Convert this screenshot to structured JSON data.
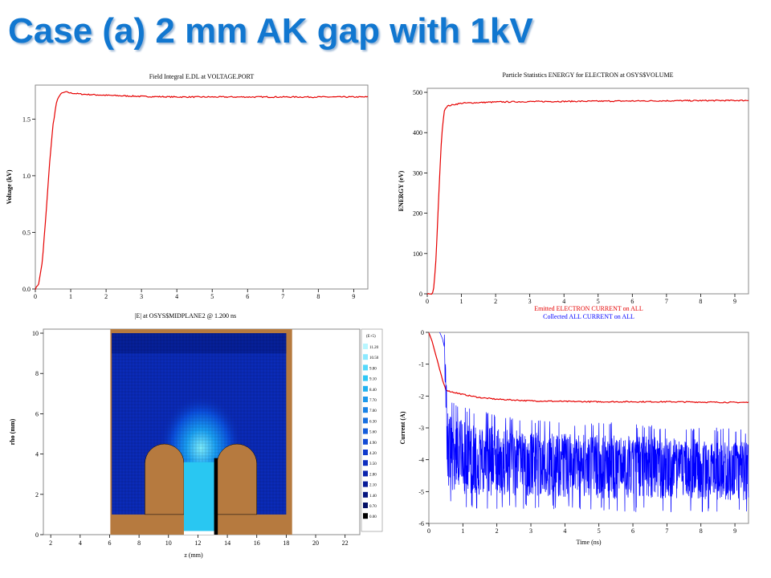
{
  "slide": {
    "title": "Case (a) 2 mm AK gap with 1kV"
  },
  "colors": {
    "title": "#1177d0",
    "red": "#e60000",
    "blue": "#0000ff",
    "copper": "#b67a3f"
  },
  "chart_data": [
    {
      "type": "line",
      "title": "Field Integral E.DL at VOLTAGE.PORT",
      "xlabel": "",
      "ylabel": "Voltage (kV)",
      "xlim": [
        0,
        9.4
      ],
      "ylim": [
        0,
        1.8
      ],
      "xticks": [
        "0",
        "1",
        "2",
        "3",
        "4",
        "5",
        "6",
        "7",
        "8",
        "9"
      ],
      "yticks": [
        "0.0",
        "0.5",
        "1.0",
        "1.5"
      ],
      "series": [
        {
          "color": "#e60000",
          "x": [
            0,
            0.1,
            0.2,
            0.3,
            0.4,
            0.5,
            0.6,
            0.7,
            0.85,
            1.0,
            1.3,
            2.0,
            3.0,
            4.0,
            5.0,
            6.0,
            7.0,
            8.0,
            9.0,
            9.4
          ],
          "y": [
            0,
            0.05,
            0.25,
            0.65,
            1.1,
            1.45,
            1.65,
            1.72,
            1.74,
            1.73,
            1.72,
            1.71,
            1.7,
            1.695,
            1.695,
            1.695,
            1.695,
            1.695,
            1.695,
            1.695
          ]
        }
      ]
    },
    {
      "type": "line",
      "title": "Particle Statistics ENERGY for ELECTRON at OSYS$VOLUME",
      "xlabel": "",
      "ylabel": "ENERGY (eV)",
      "xlim": [
        0,
        9.4
      ],
      "ylim": [
        0,
        510
      ],
      "xticks": [
        "0",
        "1",
        "2",
        "3",
        "4",
        "5",
        "6",
        "7",
        "8",
        "9"
      ],
      "yticks": [
        "0",
        "100",
        "200",
        "300",
        "400",
        "500"
      ],
      "series": [
        {
          "color": "#e60000",
          "x": [
            0,
            0.15,
            0.2,
            0.25,
            0.3,
            0.35,
            0.4,
            0.45,
            0.5,
            0.55,
            0.6,
            0.8,
            1.0,
            2.0,
            3.0,
            5.0,
            7.0,
            9.4
          ],
          "y": [
            0,
            0,
            20,
            80,
            170,
            270,
            360,
            420,
            455,
            463,
            466,
            470,
            473,
            476,
            477,
            478,
            479,
            480
          ]
        }
      ]
    },
    {
      "type": "heatmap",
      "title": "|E| at OSYS$MIDPLANE2 @ 1.200 ns",
      "xlabel": "z (mm)",
      "ylabel": "rho (mm)",
      "xlim": [
        1.5,
        23
      ],
      "ylim": [
        0,
        10.2
      ],
      "xticks": [
        "2",
        "4",
        "6",
        "8",
        "10",
        "12",
        "14",
        "16",
        "18",
        "20",
        "22"
      ],
      "yticks": [
        "0",
        "2",
        "4",
        "6",
        "8",
        "10"
      ],
      "legend_header": "(E+5)",
      "legend_values": [
        "11.20",
        "10.50",
        "9.80",
        "9.10",
        "8.40",
        "7.70",
        "7.00",
        "6.30",
        "5.60",
        "4.90",
        "4.20",
        "3.50",
        "2.80",
        "2.10",
        "1.40",
        "0.70",
        "0.00"
      ]
    },
    {
      "type": "line",
      "title": "",
      "legend": [
        "Emitted ELECTRON CURRENT on ALL",
        "Collected ALL CURRENT on ALL"
      ],
      "xlabel": "Time (ns)",
      "ylabel": "Current (A)",
      "xlim": [
        0,
        9.4
      ],
      "ylim": [
        -6,
        0
      ],
      "xticks": [
        "0",
        "1",
        "2",
        "3",
        "4",
        "5",
        "6",
        "7",
        "8",
        "9"
      ],
      "yticks": [
        "0",
        "-1",
        "-2",
        "-3",
        "-4",
        "-5",
        "-6"
      ],
      "series": [
        {
          "color": "#e60000",
          "x": [
            0,
            0.1,
            0.2,
            0.3,
            0.4,
            0.5,
            0.6,
            0.8,
            1.0,
            1.5,
            2.0,
            3.0,
            4.0,
            5.0,
            6.0,
            7.0,
            8.0,
            9.0,
            9.4
          ],
          "y": [
            0,
            -0.3,
            -0.7,
            -1.1,
            -1.5,
            -1.8,
            -1.85,
            -1.9,
            -1.95,
            -2.05,
            -2.1,
            -2.15,
            -2.17,
            -2.18,
            -2.18,
            -2.18,
            -2.19,
            -2.2,
            -2.2
          ]
        },
        {
          "color": "#0000ff",
          "noise": true,
          "band": [
            {
              "x": 0.45,
              "lo": -0.5,
              "hi": 0
            },
            {
              "x": 0.55,
              "lo": -5.2,
              "hi": -2.2
            },
            {
              "x": 1.0,
              "lo": -5.4,
              "hi": -2.5
            },
            {
              "x": 3.0,
              "lo": -5.4,
              "hi": -2.9
            },
            {
              "x": 6.0,
              "lo": -5.5,
              "hi": -3.0
            },
            {
              "x": 9.4,
              "lo": -5.5,
              "hi": -3.2
            }
          ]
        }
      ]
    }
  ]
}
